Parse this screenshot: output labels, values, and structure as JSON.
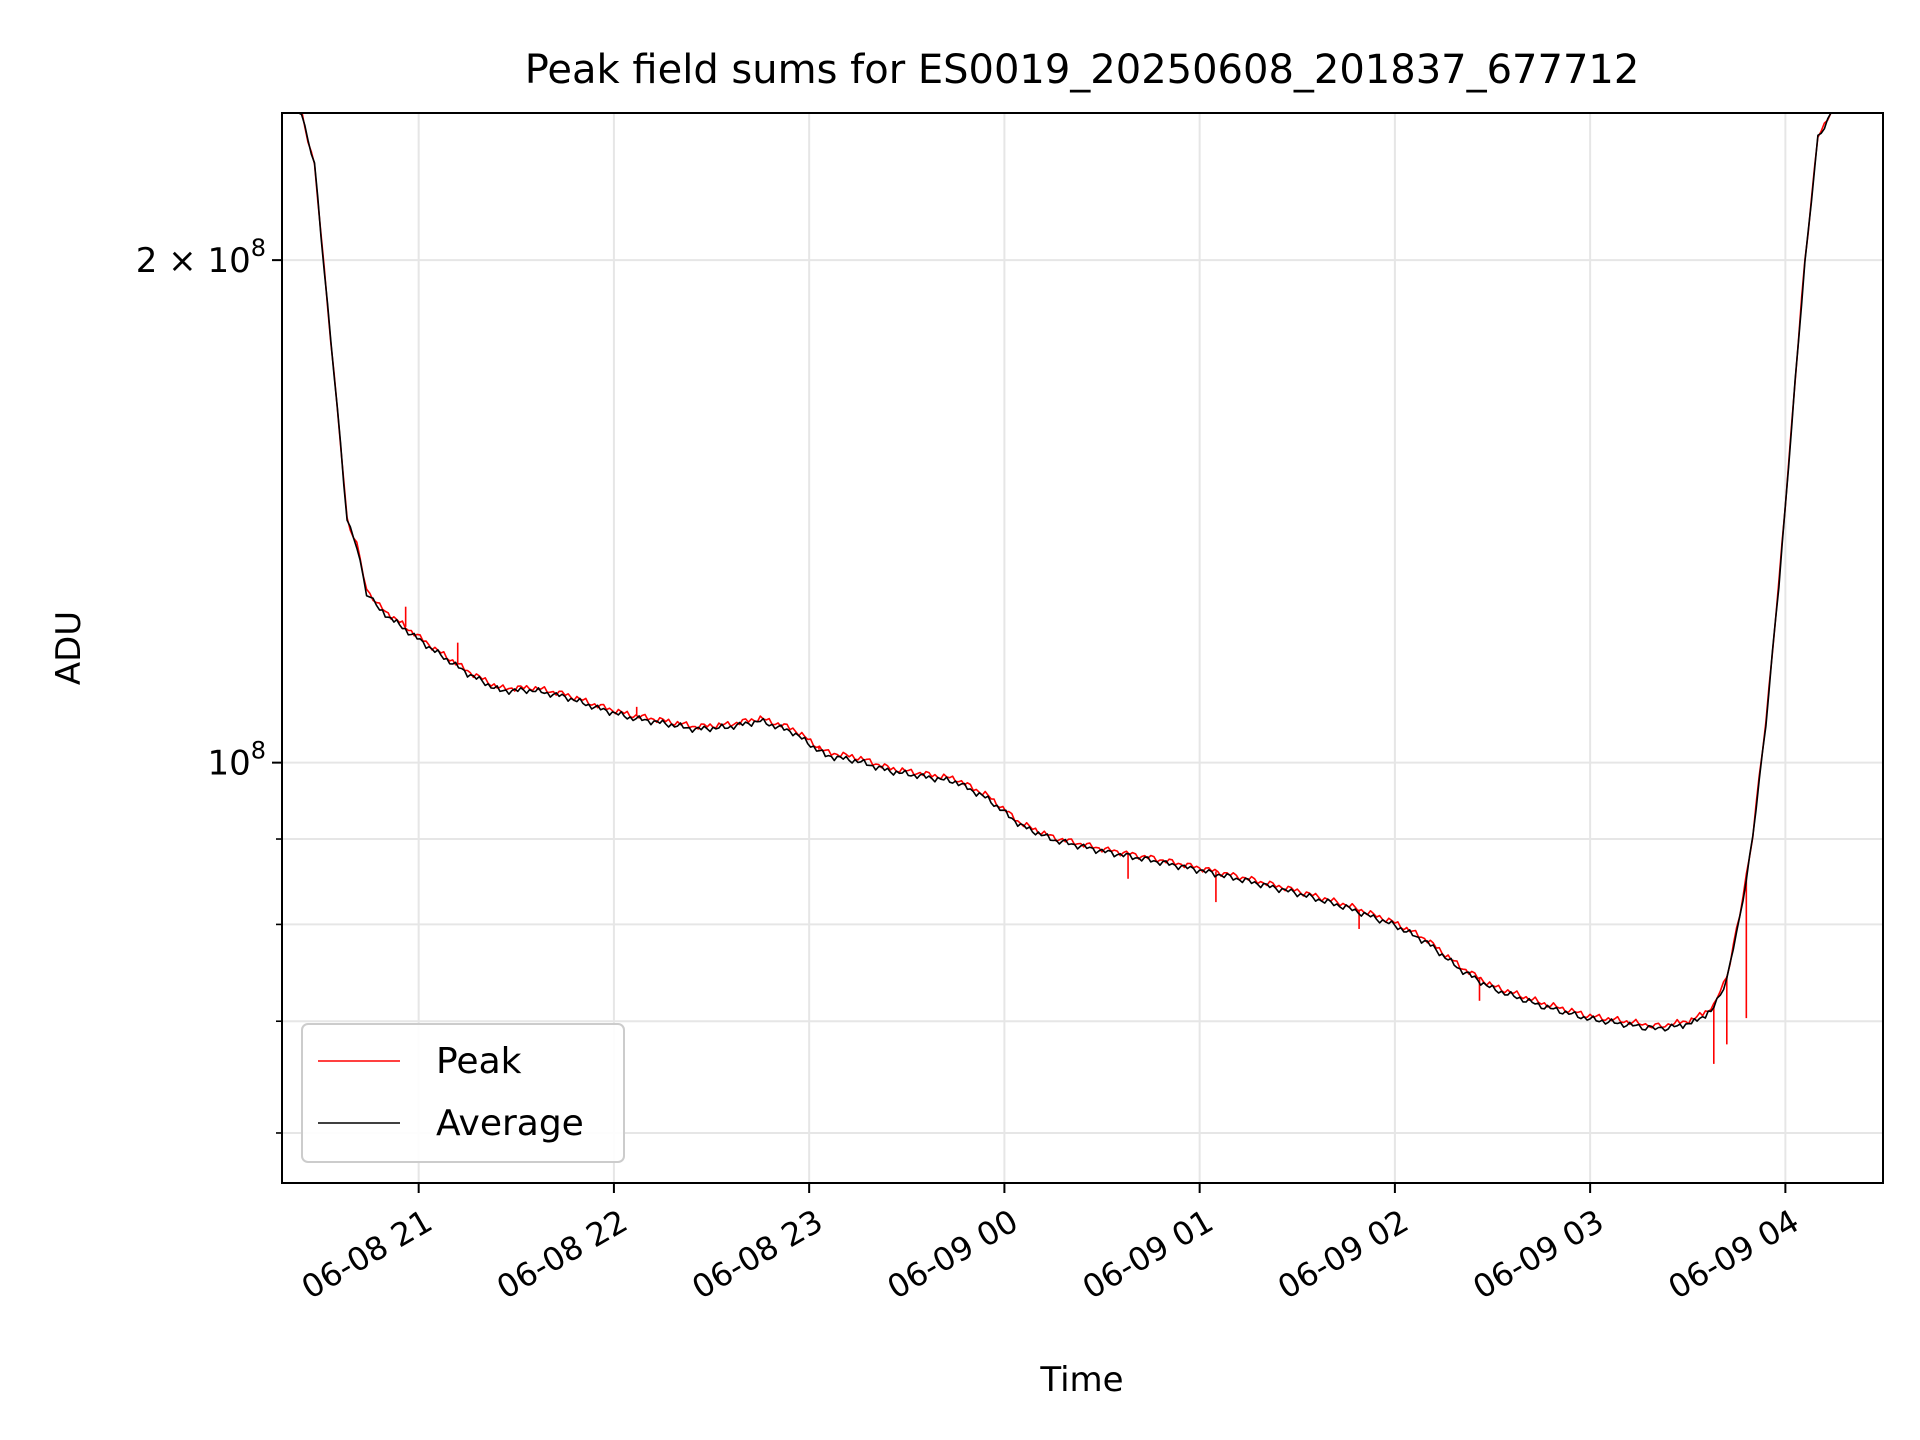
{
  "chart_data": {
    "type": "line",
    "title": "Peak field sums for ES0019_20250608_201837_677712",
    "xlabel": "Time",
    "ylabel": "ADU",
    "yscale": "log",
    "grid": true,
    "legend_placement": "lower-left",
    "xlim": [
      "2025-06-08T20:18",
      "2025-06-09T04:30"
    ],
    "ylim": [
      56000000,
      245000000
    ],
    "x_ticks": [
      {
        "t": "2025-06-08T21:00",
        "label": "06-08 21"
      },
      {
        "t": "2025-06-08T22:00",
        "label": "06-08 22"
      },
      {
        "t": "2025-06-08T23:00",
        "label": "06-08 23"
      },
      {
        "t": "2025-06-09T00:00",
        "label": "06-09 00"
      },
      {
        "t": "2025-06-09T01:00",
        "label": "06-09 01"
      },
      {
        "t": "2025-06-09T02:00",
        "label": "06-09 02"
      },
      {
        "t": "2025-06-09T03:00",
        "label": "06-09 03"
      },
      {
        "t": "2025-06-09T04:00",
        "label": "06-09 04"
      }
    ],
    "y_major_ticks": [
      {
        "value": 100000000,
        "label_base": "10",
        "label_exp": "8"
      },
      {
        "value": 200000000,
        "label_base": "2 × 10",
        "label_exp": "8"
      }
    ],
    "y_minor_ticks": [
      60000000,
      70000000,
      80000000,
      90000000
    ],
    "series": [
      {
        "name": "Peak",
        "color": "#ff0000",
        "spikes": [
          [
            "2025-06-08T20:56",
            124000000
          ],
          [
            "2025-06-08T21:12",
            118000000
          ],
          [
            "2025-06-08T22:07",
            108000000
          ],
          [
            "2025-06-08T23:03",
            101800000
          ],
          [
            "2025-06-09T00:38",
            85200000
          ],
          [
            "2025-06-09T01:05",
            82500000
          ],
          [
            "2025-06-09T01:49",
            79500000
          ],
          [
            "2025-06-09T02:26",
            72000000
          ],
          [
            "2025-06-09T03:38",
            66000000
          ],
          [
            "2025-06-09T03:42",
            67800000
          ],
          [
            "2025-06-09T03:48",
            70300000
          ]
        ],
        "points": [
          [
            "2025-06-08T20:18",
            245000000
          ],
          [
            "2025-06-08T20:24",
            245000000
          ],
          [
            "2025-06-08T20:28",
            228000000
          ],
          [
            "2025-06-08T20:32",
            188000000
          ],
          [
            "2025-06-08T20:36",
            155000000
          ],
          [
            "2025-06-08T20:38",
            140000000
          ],
          [
            "2025-06-08T20:41",
            135000000
          ],
          [
            "2025-06-08T20:44",
            127000000
          ],
          [
            "2025-06-08T20:48",
            124000000
          ],
          [
            "2025-06-08T20:55",
            121000000
          ],
          [
            "2025-06-08T21:05",
            117000000
          ],
          [
            "2025-06-08T21:15",
            113500000
          ],
          [
            "2025-06-08T21:25",
            110800000
          ],
          [
            "2025-06-08T21:35",
            110900000
          ],
          [
            "2025-06-08T21:45",
            109900000
          ],
          [
            "2025-06-08T21:55",
            108200000
          ],
          [
            "2025-06-08T22:05",
            106800000
          ],
          [
            "2025-06-08T22:15",
            106000000
          ],
          [
            "2025-06-08T22:25",
            105100000
          ],
          [
            "2025-06-08T22:35",
            105400000
          ],
          [
            "2025-06-08T22:45",
            106300000
          ],
          [
            "2025-06-08T22:55",
            104800000
          ],
          [
            "2025-06-08T23:05",
            101500000
          ],
          [
            "2025-06-08T23:15",
            100700000
          ],
          [
            "2025-06-08T23:25",
            99200000
          ],
          [
            "2025-06-08T23:35",
            98500000
          ],
          [
            "2025-06-08T23:45",
            97800000
          ],
          [
            "2025-06-08T23:55",
            95500000
          ],
          [
            "2025-06-09T00:05",
            92000000
          ],
          [
            "2025-06-09T00:15",
            90200000
          ],
          [
            "2025-06-09T00:30",
            88800000
          ],
          [
            "2025-06-09T00:45",
            87700000
          ],
          [
            "2025-06-09T01:00",
            86500000
          ],
          [
            "2025-06-09T01:15",
            85200000
          ],
          [
            "2025-06-09T01:30",
            83800000
          ],
          [
            "2025-06-09T01:45",
            82200000
          ],
          [
            "2025-06-09T02:00",
            80200000
          ],
          [
            "2025-06-09T02:10",
            78300000
          ],
          [
            "2025-06-09T02:20",
            75500000
          ],
          [
            "2025-06-09T02:30",
            73500000
          ],
          [
            "2025-06-09T02:45",
            71800000
          ],
          [
            "2025-06-09T03:00",
            70500000
          ],
          [
            "2025-06-09T03:15",
            69800000
          ],
          [
            "2025-06-09T03:20",
            69500000
          ],
          [
            "2025-06-09T03:25",
            69700000
          ],
          [
            "2025-06-09T03:32",
            70200000
          ],
          [
            "2025-06-09T03:38",
            71500000
          ],
          [
            "2025-06-09T03:42",
            74500000
          ],
          [
            "2025-06-09T03:46",
            81000000
          ],
          [
            "2025-06-09T03:50",
            90500000
          ],
          [
            "2025-06-09T03:54",
            106000000
          ],
          [
            "2025-06-09T03:58",
            128000000
          ],
          [
            "2025-06-09T04:02",
            160000000
          ],
          [
            "2025-06-09T04:06",
            200000000
          ],
          [
            "2025-06-09T04:10",
            237000000
          ],
          [
            "2025-06-09T04:14",
            245000000
          ],
          [
            "2025-06-09T04:30",
            245000000
          ]
        ]
      },
      {
        "name": "Average",
        "color": "#000000",
        "points": [
          [
            "2025-06-08T20:18",
            245000000
          ],
          [
            "2025-06-08T20:24",
            245000000
          ],
          [
            "2025-06-08T20:28",
            228000000
          ],
          [
            "2025-06-08T20:32",
            188000000
          ],
          [
            "2025-06-08T20:36",
            155000000
          ],
          [
            "2025-06-08T20:38",
            140000000
          ],
          [
            "2025-06-08T20:41",
            134500000
          ],
          [
            "2025-06-08T20:44",
            126500000
          ],
          [
            "2025-06-08T20:48",
            123500000
          ],
          [
            "2025-06-08T20:55",
            120500000
          ],
          [
            "2025-06-08T21:05",
            116600000
          ],
          [
            "2025-06-08T21:15",
            113100000
          ],
          [
            "2025-06-08T21:25",
            110400000
          ],
          [
            "2025-06-08T21:35",
            110500000
          ],
          [
            "2025-06-08T21:45",
            109500000
          ],
          [
            "2025-06-08T21:55",
            107800000
          ],
          [
            "2025-06-08T22:05",
            106400000
          ],
          [
            "2025-06-08T22:15",
            105600000
          ],
          [
            "2025-06-08T22:25",
            104700000
          ],
          [
            "2025-06-08T22:35",
            105000000
          ],
          [
            "2025-06-08T22:45",
            105900000
          ],
          [
            "2025-06-08T22:55",
            104300000
          ],
          [
            "2025-06-08T23:05",
            101000000
          ],
          [
            "2025-06-08T23:15",
            100200000
          ],
          [
            "2025-06-08T23:25",
            98800000
          ],
          [
            "2025-06-08T23:35",
            98100000
          ],
          [
            "2025-06-08T23:45",
            97400000
          ],
          [
            "2025-06-08T23:55",
            95100000
          ],
          [
            "2025-06-09T00:05",
            91700000
          ],
          [
            "2025-06-09T00:15",
            89900000
          ],
          [
            "2025-06-09T00:30",
            88500000
          ],
          [
            "2025-06-09T00:45",
            87400000
          ],
          [
            "2025-06-09T01:00",
            86200000
          ],
          [
            "2025-06-09T01:15",
            84900000
          ],
          [
            "2025-06-09T01:30",
            83500000
          ],
          [
            "2025-06-09T01:45",
            81900000
          ],
          [
            "2025-06-09T02:00",
            79900000
          ],
          [
            "2025-06-09T02:10",
            78000000
          ],
          [
            "2025-06-09T02:20",
            75200000
          ],
          [
            "2025-06-09T02:30",
            73200000
          ],
          [
            "2025-06-09T02:45",
            71500000
          ],
          [
            "2025-06-09T03:00",
            70200000
          ],
          [
            "2025-06-09T03:15",
            69500000
          ],
          [
            "2025-06-09T03:20",
            69300000
          ],
          [
            "2025-06-09T03:25",
            69400000
          ],
          [
            "2025-06-09T03:32",
            69900000
          ],
          [
            "2025-06-09T03:38",
            71200000
          ],
          [
            "2025-06-09T03:42",
            74200000
          ],
          [
            "2025-06-09T03:46",
            80700000
          ],
          [
            "2025-06-09T03:50",
            90200000
          ],
          [
            "2025-06-09T03:54",
            105600000
          ],
          [
            "2025-06-09T03:58",
            127600000
          ],
          [
            "2025-06-09T04:02",
            159500000
          ],
          [
            "2025-06-09T04:06",
            199500000
          ],
          [
            "2025-06-09T04:10",
            236500000
          ],
          [
            "2025-06-09T04:14",
            245000000
          ],
          [
            "2025-06-09T04:30",
            245000000
          ]
        ]
      }
    ]
  }
}
